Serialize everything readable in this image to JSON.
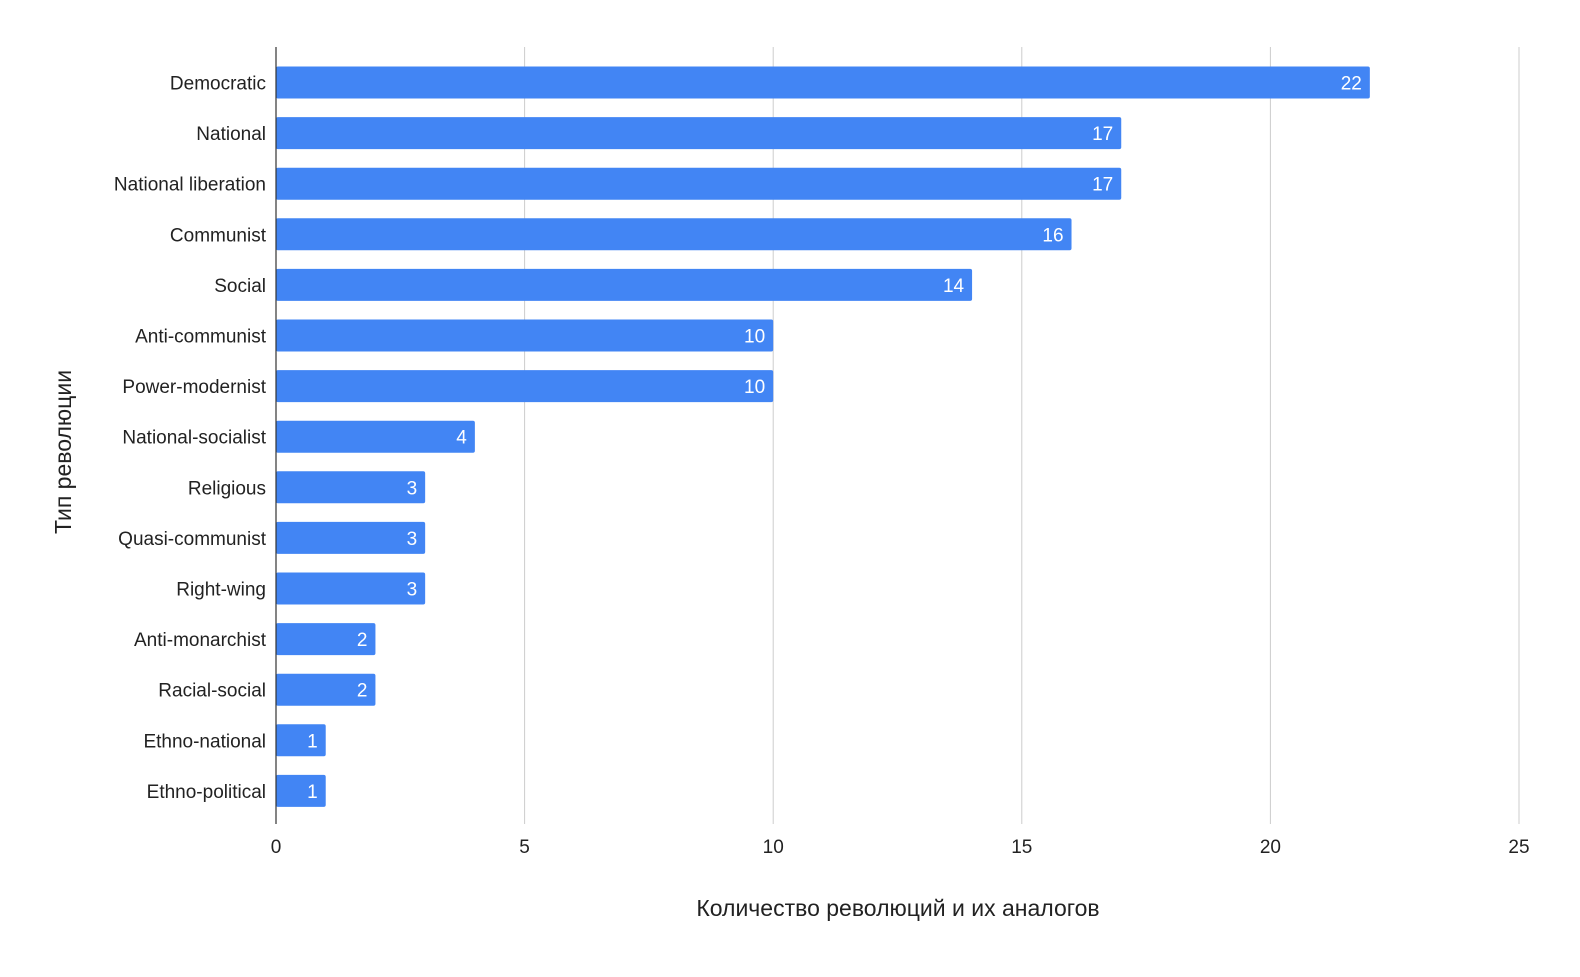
{
  "chart_data": {
    "type": "bar",
    "orientation": "horizontal",
    "categories": [
      "Democratic",
      "National",
      "National liberation",
      "Communist",
      "Social",
      "Anti-communist",
      "Power-modernist",
      "National-socialist",
      "Religious",
      "Quasi-communist",
      "Right-wing",
      "Anti-monarchist",
      "Racial-social",
      "Ethno-national",
      "Ethno-political"
    ],
    "values": [
      22,
      17,
      17,
      16,
      14,
      10,
      10,
      4,
      3,
      3,
      3,
      2,
      2,
      1,
      1
    ],
    "title": "",
    "xlabel": "Количество революций и их аналогов",
    "ylabel": "Тип революции",
    "xlim": [
      0,
      25
    ],
    "xticks": [
      0,
      5,
      10,
      15,
      20,
      25
    ],
    "grid": "vertical",
    "legend": "none",
    "data_labels": true,
    "colors": {
      "bar": "#4285f4",
      "grid": "#cccccc",
      "axis": "#333333",
      "text": "#222222",
      "data_label": "#ffffff"
    }
  }
}
